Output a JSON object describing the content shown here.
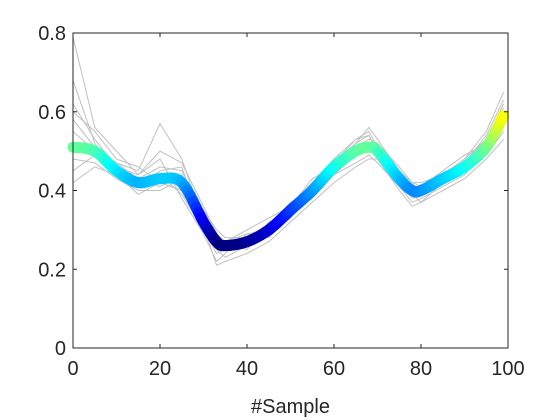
{
  "chart_data": {
    "type": "line",
    "title": "",
    "xlabel": "#Sample",
    "ylabel": "",
    "xlim": [
      0,
      100
    ],
    "ylim": [
      0,
      0.8
    ],
    "xticks": [
      "0",
      "20",
      "40",
      "60",
      "80",
      "100"
    ],
    "yticks": [
      "0",
      "0.2",
      "0.4",
      "0.6",
      "0.8"
    ],
    "grid": false,
    "legend": "none",
    "colors": {
      "individual_traces": "#c0c0c0",
      "axes": "#262626",
      "mean_colormap": [
        "#00007f",
        "#0000ff",
        "#007fff",
        "#00ffff",
        "#7fff7f",
        "#ffff00"
      ]
    },
    "mean_series": {
      "x": [
        0,
        5,
        10,
        15,
        20,
        25,
        30,
        33,
        35,
        40,
        45,
        50,
        55,
        60,
        65,
        68,
        70,
        75,
        78,
        80,
        85,
        90,
        95,
        99
      ],
      "y": [
        0.51,
        0.5,
        0.45,
        0.42,
        0.43,
        0.42,
        0.32,
        0.27,
        0.26,
        0.27,
        0.3,
        0.35,
        0.4,
        0.46,
        0.5,
        0.51,
        0.5,
        0.43,
        0.4,
        0.4,
        0.43,
        0.46,
        0.51,
        0.59
      ]
    },
    "individual_series": [
      {
        "y": [
          0.55,
          0.5,
          0.47,
          0.43,
          0.41,
          0.44,
          0.34,
          0.28,
          0.25,
          0.27,
          0.3,
          0.36,
          0.41,
          0.45,
          0.5,
          0.52,
          0.49,
          0.44,
          0.41,
          0.4,
          0.43,
          0.47,
          0.53,
          0.62
        ]
      },
      {
        "y": [
          0.68,
          0.52,
          0.44,
          0.41,
          0.45,
          0.46,
          0.3,
          0.26,
          0.27,
          0.25,
          0.32,
          0.33,
          0.42,
          0.48,
          0.53,
          0.55,
          0.51,
          0.42,
          0.38,
          0.39,
          0.44,
          0.48,
          0.55,
          0.65
        ]
      },
      {
        "y": [
          0.45,
          0.49,
          0.46,
          0.44,
          0.48,
          0.38,
          0.29,
          0.22,
          0.24,
          0.29,
          0.28,
          0.34,
          0.38,
          0.44,
          0.47,
          0.49,
          0.47,
          0.41,
          0.37,
          0.38,
          0.41,
          0.44,
          0.5,
          0.57
        ]
      },
      {
        "y": [
          0.6,
          0.55,
          0.48,
          0.46,
          0.42,
          0.4,
          0.35,
          0.3,
          0.28,
          0.28,
          0.31,
          0.37,
          0.4,
          0.47,
          0.52,
          0.54,
          0.5,
          0.45,
          0.42,
          0.41,
          0.45,
          0.49,
          0.52,
          0.6
        ]
      },
      {
        "y": [
          0.48,
          0.47,
          0.43,
          0.4,
          0.4,
          0.43,
          0.33,
          0.25,
          0.23,
          0.26,
          0.29,
          0.34,
          0.39,
          0.44,
          0.49,
          0.5,
          0.51,
          0.44,
          0.39,
          0.37,
          0.42,
          0.45,
          0.49,
          0.55
        ]
      },
      {
        "y": [
          0.79,
          0.56,
          0.5,
          0.44,
          0.5,
          0.47,
          0.36,
          0.29,
          0.27,
          0.3,
          0.33,
          0.36,
          0.43,
          0.46,
          0.51,
          0.53,
          0.52,
          0.46,
          0.42,
          0.42,
          0.44,
          0.46,
          0.5,
          0.58
        ]
      },
      {
        "y": [
          0.42,
          0.46,
          0.44,
          0.39,
          0.42,
          0.4,
          0.31,
          0.21,
          0.22,
          0.24,
          0.27,
          0.32,
          0.37,
          0.42,
          0.46,
          0.48,
          0.48,
          0.4,
          0.36,
          0.37,
          0.4,
          0.43,
          0.48,
          0.53
        ]
      },
      {
        "y": [
          0.58,
          0.51,
          0.47,
          0.45,
          0.57,
          0.48,
          0.32,
          0.26,
          0.26,
          0.28,
          0.31,
          0.35,
          0.41,
          0.47,
          0.52,
          0.56,
          0.53,
          0.45,
          0.41,
          0.41,
          0.43,
          0.47,
          0.54,
          0.63
        ]
      },
      {
        "y": [
          0.5,
          0.49,
          0.45,
          0.42,
          0.44,
          0.39,
          0.3,
          0.24,
          0.25,
          0.27,
          0.29,
          0.33,
          0.4,
          0.45,
          0.5,
          0.51,
          0.49,
          0.42,
          0.39,
          0.39,
          0.42,
          0.46,
          0.5,
          0.56
        ]
      },
      {
        "y": [
          0.62,
          0.53,
          0.46,
          0.43,
          0.46,
          0.45,
          0.34,
          0.28,
          0.27,
          0.29,
          0.3,
          0.36,
          0.42,
          0.47,
          0.53,
          0.54,
          0.5,
          0.44,
          0.4,
          0.4,
          0.44,
          0.48,
          0.53,
          0.61
        ]
      }
    ]
  }
}
